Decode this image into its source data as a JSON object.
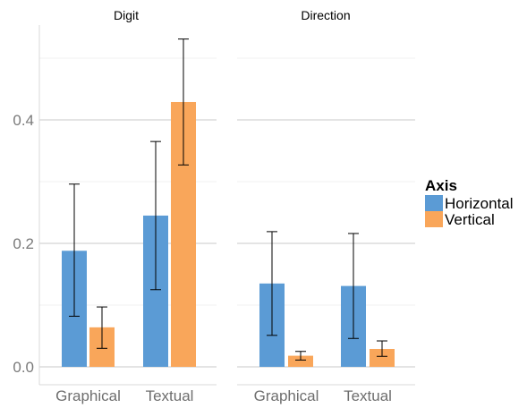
{
  "chart_data": {
    "type": "bar",
    "facet_variable_values": [
      "Digit",
      "Direction"
    ],
    "categories": [
      "Graphical",
      "Textual"
    ],
    "ylim": [
      0,
      0.54
    ],
    "y_ticks": [
      0.0,
      0.2,
      0.4
    ],
    "y_tick_labels": [
      "0.0",
      "0.2",
      "0.4"
    ],
    "grid": true,
    "legend": {
      "title": "Axis",
      "placement": "right",
      "entries": [
        "Horizontal",
        "Vertical"
      ]
    },
    "colors": {
      "Horizontal": "#5b9bd5",
      "Vertical": "#f9a65a"
    },
    "panels": [
      {
        "title": "Digit",
        "series": [
          {
            "name": "Horizontal",
            "values": [
              0.188,
              0.245
            ],
            "error_low": [
              0.082,
              0.125
            ],
            "error_high": [
              0.296,
              0.365
            ]
          },
          {
            "name": "Vertical",
            "values": [
              0.064,
              0.429
            ],
            "error_low": [
              0.03,
              0.327
            ],
            "error_high": [
              0.097,
              0.531
            ]
          }
        ]
      },
      {
        "title": "Direction",
        "series": [
          {
            "name": "Horizontal",
            "values": [
              0.135,
              0.131
            ],
            "error_low": [
              0.051,
              0.046
            ],
            "error_high": [
              0.219,
              0.216
            ]
          },
          {
            "name": "Vertical",
            "values": [
              0.018,
              0.029
            ],
            "error_low": [
              0.011,
              0.017
            ],
            "error_high": [
              0.025,
              0.042
            ]
          }
        ]
      }
    ]
  }
}
